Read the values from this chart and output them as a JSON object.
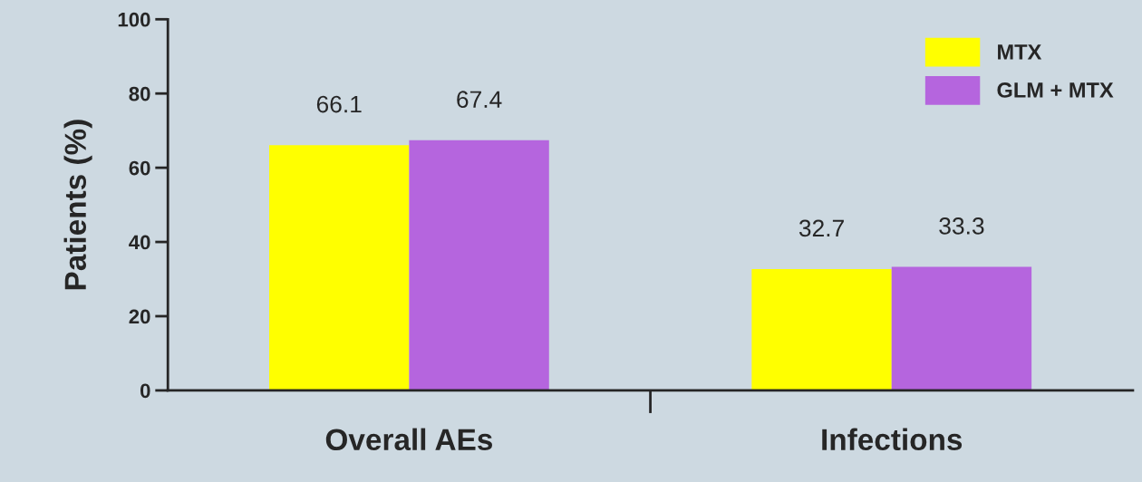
{
  "chart_data": {
    "type": "bar",
    "ylabel": "Patients (%)",
    "categories": [
      "Overall AEs",
      "Infections"
    ],
    "series": [
      {
        "name": "MTX",
        "color": "#ffff00",
        "values": [
          66.1,
          32.7
        ]
      },
      {
        "name": "GLM + MTX",
        "color": "#b565de",
        "values": [
          67.4,
          33.3
        ]
      }
    ],
    "ylim": [
      0,
      100
    ],
    "yticks": [
      0,
      20,
      40,
      60,
      80,
      100
    ],
    "data_labels": true,
    "legend": "top right",
    "grid": false
  }
}
